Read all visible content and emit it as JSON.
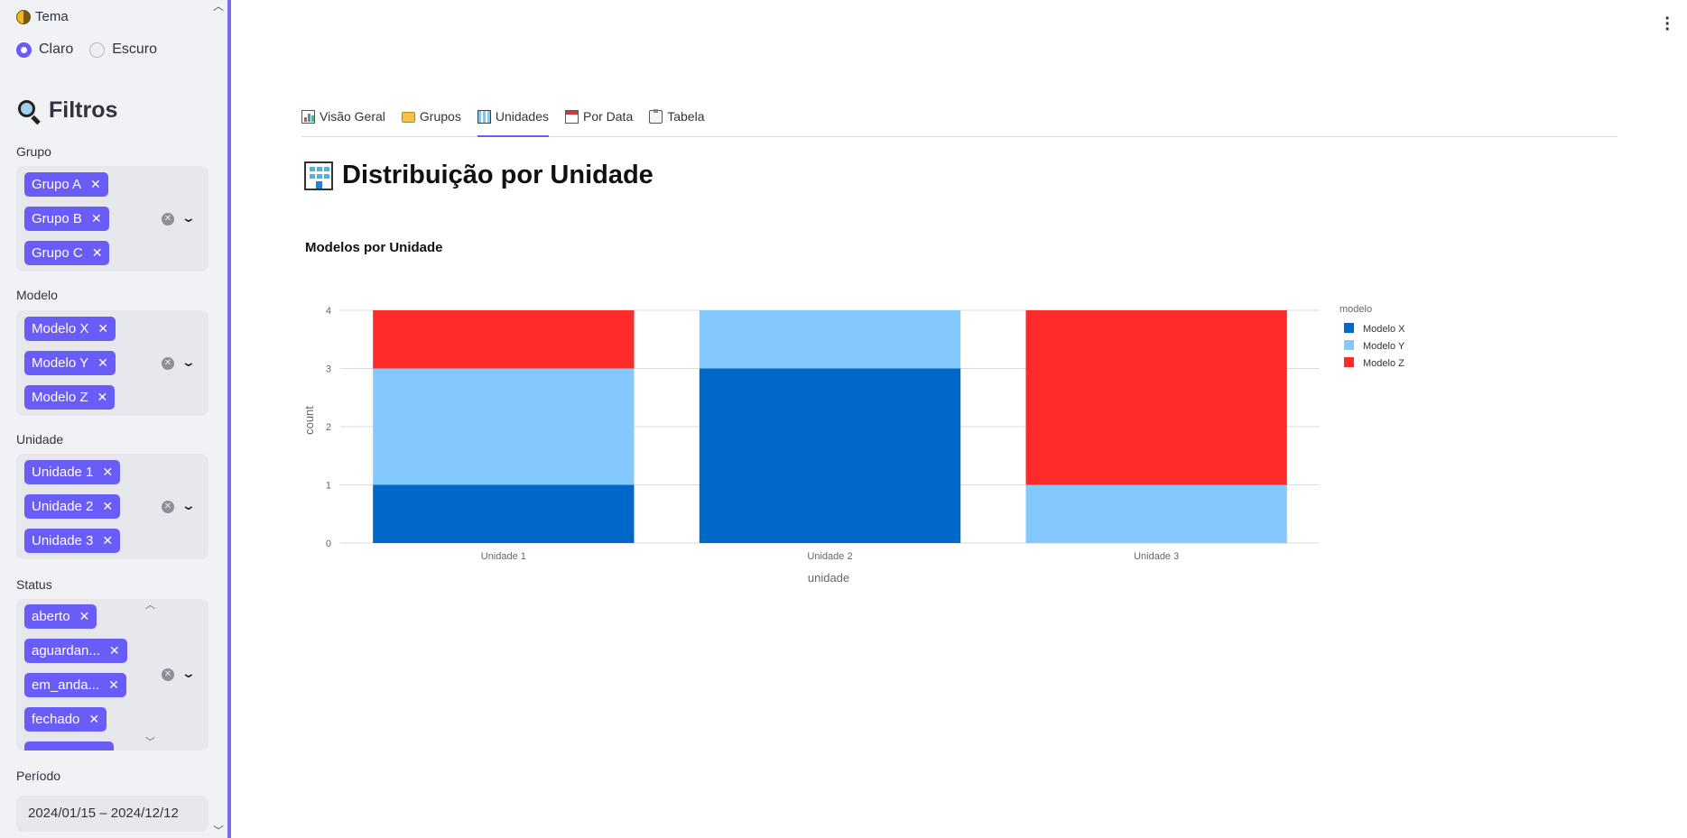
{
  "sidebar": {
    "theme": {
      "title": "Tema",
      "options": [
        {
          "label": "Claro",
          "selected": true
        },
        {
          "label": "Escuro",
          "selected": false
        }
      ]
    },
    "filters_title": "Filtros",
    "fields": {
      "grupo": {
        "label": "Grupo",
        "tags": [
          "Grupo A",
          "Grupo B",
          "Grupo C"
        ]
      },
      "modelo": {
        "label": "Modelo",
        "tags": [
          "Modelo X",
          "Modelo Y",
          "Modelo Z"
        ]
      },
      "unidade": {
        "label": "Unidade",
        "tags": [
          "Unidade 1",
          "Unidade 2",
          "Unidade 3"
        ]
      },
      "status": {
        "label": "Status",
        "tags": [
          "aberto",
          "aguardan...",
          "em_anda...",
          "fechado"
        ]
      }
    },
    "periodo": {
      "label": "Período",
      "value": "2024/01/15 – 2024/12/12"
    }
  },
  "tabs": [
    {
      "label": "Visão Geral",
      "icon": "bar-chart-icon",
      "active": false
    },
    {
      "label": "Grupos",
      "icon": "folder-icon",
      "active": false
    },
    {
      "label": "Unidades",
      "icon": "office-building-icon",
      "active": true
    },
    {
      "label": "Por Data",
      "icon": "calendar-icon",
      "active": false
    },
    {
      "label": "Tabela",
      "icon": "clipboard-icon",
      "active": false
    }
  ],
  "page_title": "Distribuição por Unidade",
  "colors": {
    "accent": "#6a5cf6",
    "modelo_x": "#0068c9",
    "modelo_y": "#83c9ff",
    "modelo_z": "#ff2b2b"
  },
  "chart_data": {
    "type": "bar",
    "stacked": true,
    "title": "Modelos por Unidade",
    "xlabel": "unidade",
    "ylabel": "count",
    "categories": [
      "Unidade 1",
      "Unidade 2",
      "Unidade 3"
    ],
    "ylim": [
      0,
      4
    ],
    "yticks": [
      0,
      1,
      2,
      3,
      4
    ],
    "grid": true,
    "legend_title": "modelo",
    "legend_position": "top-right",
    "series": [
      {
        "name": "Modelo X",
        "color": "#0068c9",
        "values": [
          1,
          3,
          0
        ]
      },
      {
        "name": "Modelo Y",
        "color": "#83c9ff",
        "values": [
          2,
          1,
          1
        ]
      },
      {
        "name": "Modelo Z",
        "color": "#ff2b2b",
        "values": [
          1,
          0,
          3
        ]
      }
    ]
  }
}
